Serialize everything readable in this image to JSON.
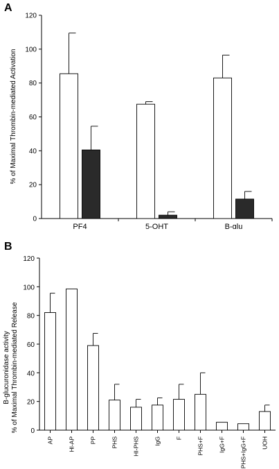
{
  "chart_data": [
    {
      "panel_label": "A",
      "type": "bar",
      "ylabel": "% of Maximal Thrombin-mediated Activation",
      "ylim": [
        0,
        120
      ],
      "yticks": [
        0,
        20,
        40,
        60,
        80,
        100,
        120
      ],
      "categories": [
        "PF4",
        "5-OHT",
        "B-glu"
      ],
      "series": [
        {
          "fill": "#ffffff",
          "values": [
            85.5,
            67.5,
            83
          ],
          "errors": [
            24,
            1.5,
            13.5
          ]
        },
        {
          "fill": "#2a2a2a",
          "values": [
            40.5,
            2,
            11.5
          ],
          "errors": [
            14,
            2,
            4.5
          ]
        }
      ]
    },
    {
      "panel_label": "B",
      "type": "bar",
      "ylabel_line1": "B-glucuronidase activity",
      "ylabel_line2": "% of Maximal Thrombin-mediated Release",
      "ylim": [
        0,
        120
      ],
      "yticks": [
        0,
        20,
        40,
        60,
        80,
        100,
        120
      ],
      "categories": [
        "AP",
        "HI-AP",
        "PP",
        "PHS",
        "HI-PHS",
        "IgG",
        "F",
        "PHS+F",
        "IgG+F",
        "PHS+IgG+F",
        "UOH"
      ],
      "values": [
        82,
        98.5,
        59,
        21,
        16,
        17.5,
        21.5,
        25,
        5.5,
        4.5,
        13
      ],
      "errors": [
        13.5,
        0,
        8.5,
        11,
        5.5,
        5,
        10.5,
        15,
        0,
        0,
        4.5
      ],
      "fill": "#ffffff"
    }
  ]
}
